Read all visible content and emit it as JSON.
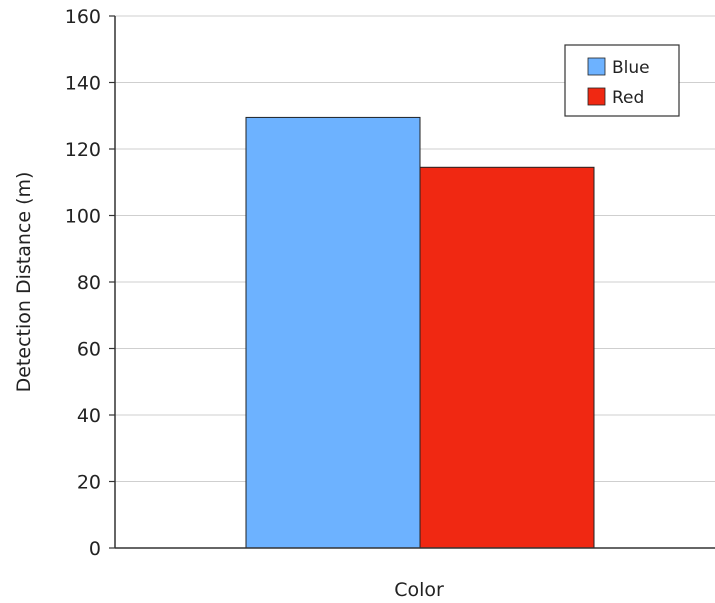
{
  "chart_data": {
    "type": "bar",
    "title": "",
    "xlabel": "Color",
    "ylabel": "Detection Distance (m)",
    "categories": [
      ""
    ],
    "series": [
      {
        "name": "Blue",
        "values": [
          129.5
        ],
        "color": "#6db2ff"
      },
      {
        "name": "Red",
        "values": [
          114.5
        ],
        "color": "#f02812"
      }
    ],
    "ylim": [
      0,
      160
    ],
    "yticks": [
      0,
      20,
      40,
      60,
      80,
      100,
      120,
      140,
      160
    ],
    "grid": true,
    "legend_position": "top-right"
  }
}
